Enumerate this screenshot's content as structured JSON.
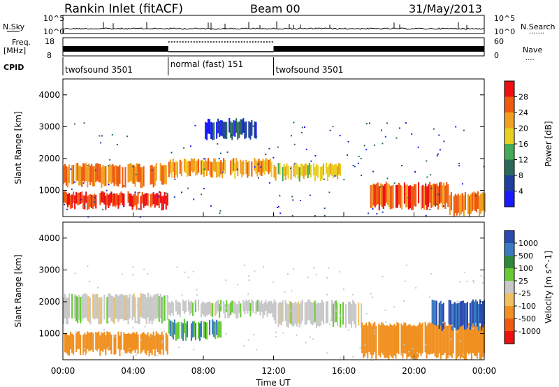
{
  "header": {
    "title": "Rankin Inlet (fitACF)",
    "beam": "Beam 00",
    "date": "31/May/2013"
  },
  "noise_panel": {
    "left_label": "N.Sky",
    "right_label": "N.Search",
    "y_ticks_left": [
      "10^5",
      "10^0"
    ],
    "y_ticks_right": [
      "10^5",
      "10^0"
    ],
    "right_line": "......."
  },
  "freq_panel": {
    "left_label_line1": "Freq.",
    "left_label_line2": "[MHz]",
    "y_ticks_left": [
      "18",
      "8"
    ],
    "y_ticks_right": [
      "60",
      "0"
    ],
    "right_label": "Nave",
    "right_line": "....",
    "cpid_label": "CPID"
  },
  "cpid_segments": [
    {
      "label": "twofsound 3501",
      "start_hour": 0,
      "end_hour": 6
    },
    {
      "label": "normal (fast) 151",
      "start_hour": 6,
      "end_hour": 12
    },
    {
      "label": "twofsound 3501",
      "start_hour": 12,
      "end_hour": 24
    }
  ],
  "colors": {
    "power": [
      "#1a1aff",
      "#1e3fa0",
      "#2a6a5a",
      "#44aa55",
      "#e8d020",
      "#f0a020",
      "#f05a10",
      "#ee1010"
    ],
    "velocity": [
      "#2a4ab0",
      "#3a7ac0",
      "#2e8a3a",
      "#66cc33",
      "#c8c8c8",
      "#f0c060",
      "#f09020",
      "#f05a10",
      "#ee1010"
    ]
  },
  "chart_data": [
    {
      "type": "heatmap",
      "panel": "power",
      "ylabel": "Slant Range [km]",
      "xlabel": "",
      "xlim": [
        0,
        24
      ],
      "ylim": [
        180,
        4500
      ],
      "x_ticks": [
        "00:00",
        "04:00",
        "08:00",
        "12:00",
        "16:00",
        "20:00",
        "00:00"
      ],
      "y_ticks": [
        1000,
        2000,
        3000,
        4000
      ],
      "colorbar_label": "Power [dB]",
      "colorbar_ticks": [
        4,
        8,
        12,
        16,
        20,
        24,
        28
      ],
      "colorbar_range": [
        0,
        32
      ],
      "bands": [
        {
          "t0": 0,
          "t1": 6,
          "r0": 1200,
          "r1": 1800,
          "level": 24
        },
        {
          "t0": 0,
          "t1": 6,
          "r0": 500,
          "r1": 900,
          "level": 28
        },
        {
          "t0": 6,
          "t1": 12,
          "r0": 1500,
          "r1": 1950,
          "level": 22
        },
        {
          "t0": 8,
          "t1": 11,
          "r0": 2700,
          "r1": 3200,
          "level": 6
        },
        {
          "t0": 12,
          "t1": 16,
          "r0": 1400,
          "r1": 1800,
          "level": 18
        },
        {
          "t0": 17.5,
          "t1": 22,
          "r0": 500,
          "r1": 1200,
          "level": 26
        },
        {
          "t0": 22,
          "t1": 24,
          "r0": 300,
          "r1": 900,
          "level": 24
        }
      ]
    },
    {
      "type": "heatmap",
      "panel": "velocity",
      "ylabel": "Slant Range [km]",
      "xlabel": "Time UT",
      "xlim": [
        0,
        24
      ],
      "ylim": [
        180,
        4500
      ],
      "x_ticks": [
        "00:00",
        "04:00",
        "08:00",
        "12:00",
        "16:00",
        "20:00",
        "00:00"
      ],
      "y_ticks": [
        1000,
        2000,
        3000,
        4000
      ],
      "colorbar_label": "Velocity [m s^-1]",
      "colorbar_ticks": [
        "1000",
        "500",
        "100",
        "25",
        "-25",
        "-100",
        "-500",
        "-1000"
      ],
      "bands": [
        {
          "t0": 0,
          "t1": 6,
          "r0": 1400,
          "r1": 2200,
          "level": 0
        },
        {
          "t0": 0,
          "t1": 6,
          "r0": 400,
          "r1": 1000,
          "level": -200
        },
        {
          "t0": 6,
          "t1": 12,
          "r0": 1600,
          "r1": 2000,
          "level": 0
        },
        {
          "t0": 6,
          "t1": 9,
          "r0": 900,
          "r1": 1400,
          "level": 100
        },
        {
          "t0": 12,
          "t1": 17,
          "r0": 1300,
          "r1": 2000,
          "level": 0
        },
        {
          "t0": 17,
          "t1": 24,
          "r0": 300,
          "r1": 1300,
          "level": -300
        },
        {
          "t0": 21,
          "t1": 24,
          "r0": 1200,
          "r1": 2000,
          "level": 500
        }
      ]
    }
  ]
}
